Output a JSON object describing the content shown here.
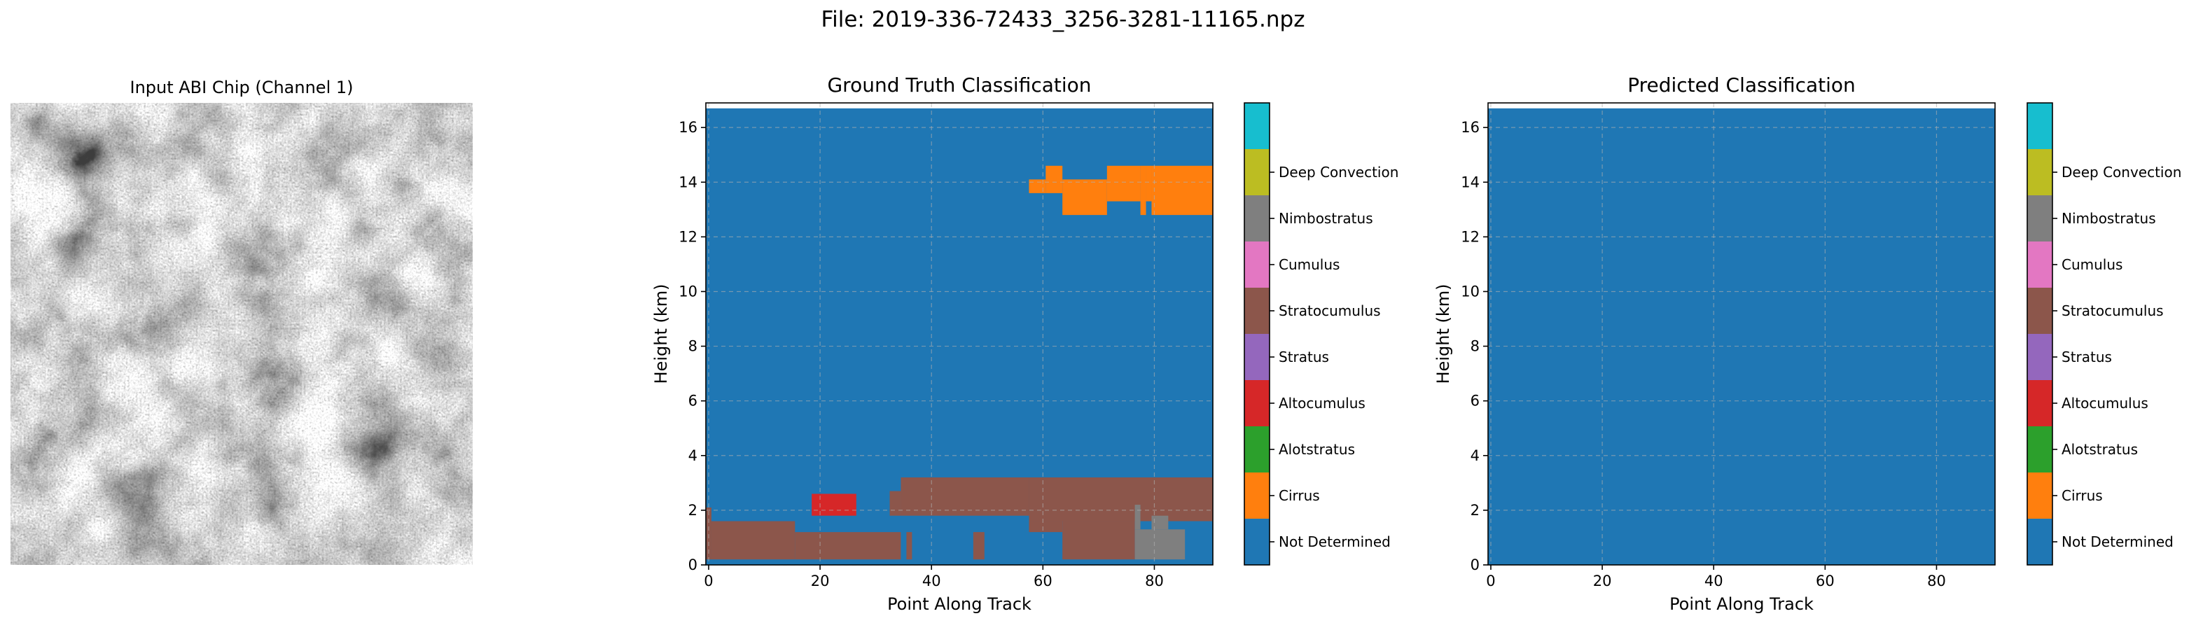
{
  "figure": {
    "suptitle": "File: 2019-336-72433_3256-3281-11165.npz"
  },
  "input_panel": {
    "title": "Input ABI Chip (Channel 1)"
  },
  "colorbar_classes": [
    {
      "label": "Not Determined",
      "color": "#1f77b4"
    },
    {
      "label": "Cirrus",
      "color": "#ff7f0e"
    },
    {
      "label": "Alotstratus",
      "color": "#2ca02c"
    },
    {
      "label": "Altocumulus",
      "color": "#d62728"
    },
    {
      "label": "Stratus",
      "color": "#9467bd"
    },
    {
      "label": "Stratocumulus",
      "color": "#8c564b"
    },
    {
      "label": "Cumulus",
      "color": "#e377c2"
    },
    {
      "label": "Nimbostratus",
      "color": "#7f7f7f"
    },
    {
      "label": "Deep Convection",
      "color": "#bcbd22"
    },
    {
      "label": "",
      "color": "#17becf"
    }
  ],
  "chart_data": [
    {
      "type": "heatmap",
      "title": "Ground Truth Classification",
      "xlabel": "Point Along Track",
      "ylabel": "Height (km)",
      "xlim": [
        -0.5,
        90.5
      ],
      "ylim": [
        0,
        16.9
      ],
      "xticks": [
        0,
        20,
        40,
        60,
        80
      ],
      "yticks": [
        0,
        2,
        4,
        6,
        8,
        10,
        12,
        14,
        16
      ],
      "grid": true,
      "data_top_km": 16.7,
      "background_class": "Not Determined",
      "regions": [
        {
          "class": "Cirrus",
          "x": [
            58,
            61
          ],
          "y": [
            13.6,
            14.1
          ]
        },
        {
          "class": "Cirrus",
          "x": [
            61,
            64
          ],
          "y": [
            13.6,
            14.6
          ]
        },
        {
          "class": "Cirrus",
          "x": [
            64,
            72
          ],
          "y": [
            12.8,
            14.1
          ]
        },
        {
          "class": "Cirrus",
          "x": [
            72,
            78
          ],
          "y": [
            13.3,
            14.6
          ]
        },
        {
          "class": "Cirrus",
          "x": [
            78,
            79
          ],
          "y": [
            12.8,
            14.6
          ]
        },
        {
          "class": "Cirrus",
          "x": [
            79,
            80
          ],
          "y": [
            13.3,
            14.6
          ]
        },
        {
          "class": "Cirrus",
          "x": [
            80,
            91
          ],
          "y": [
            12.8,
            14.6
          ]
        },
        {
          "class": "Altocumulus",
          "x": [
            19,
            27
          ],
          "y": [
            1.8,
            2.6
          ]
        },
        {
          "class": "Stratocumulus",
          "x": [
            0,
            1
          ],
          "y": [
            0.2,
            2.1
          ]
        },
        {
          "class": "Stratocumulus",
          "x": [
            1,
            16
          ],
          "y": [
            0.2,
            1.6
          ]
        },
        {
          "class": "Stratocumulus",
          "x": [
            16,
            35
          ],
          "y": [
            0.2,
            1.2
          ]
        },
        {
          "class": "Stratocumulus",
          "x": [
            33,
            35
          ],
          "y": [
            1.8,
            2.7
          ]
        },
        {
          "class": "Stratocumulus",
          "x": [
            35,
            58
          ],
          "y": [
            1.8,
            3.2
          ]
        },
        {
          "class": "Stratocumulus",
          "x": [
            48,
            50
          ],
          "y": [
            0.2,
            1.2
          ]
        },
        {
          "class": "Stratocumulus",
          "x": [
            58,
            91
          ],
          "y": [
            1.6,
            3.2
          ]
        },
        {
          "class": "Stratocumulus",
          "x": [
            58,
            64
          ],
          "y": [
            1.2,
            1.6
          ]
        },
        {
          "class": "Stratocumulus",
          "x": [
            64,
            77
          ],
          "y": [
            0.2,
            1.6
          ]
        },
        {
          "class": "Stratocumulus",
          "x": [
            36,
            37
          ],
          "y": [
            0.2,
            1.2
          ]
        },
        {
          "class": "Nimbostratus",
          "x": [
            77,
            86
          ],
          "y": [
            0.2,
            1.3
          ]
        },
        {
          "class": "Nimbostratus",
          "x": [
            77,
            78
          ],
          "y": [
            1.3,
            2.2
          ]
        },
        {
          "class": "Nimbostratus",
          "x": [
            80,
            83
          ],
          "y": [
            1.3,
            1.8
          ]
        }
      ]
    },
    {
      "type": "heatmap",
      "title": "Predicted Classification",
      "xlabel": "Point Along Track",
      "ylabel": "Height (km)",
      "xlim": [
        -0.5,
        90.5
      ],
      "ylim": [
        0,
        16.9
      ],
      "xticks": [
        0,
        20,
        40,
        60,
        80
      ],
      "yticks": [
        0,
        2,
        4,
        6,
        8,
        10,
        12,
        14,
        16
      ],
      "grid": true,
      "data_top_km": 16.7,
      "background_class": "Not Determined",
      "regions": []
    }
  ]
}
